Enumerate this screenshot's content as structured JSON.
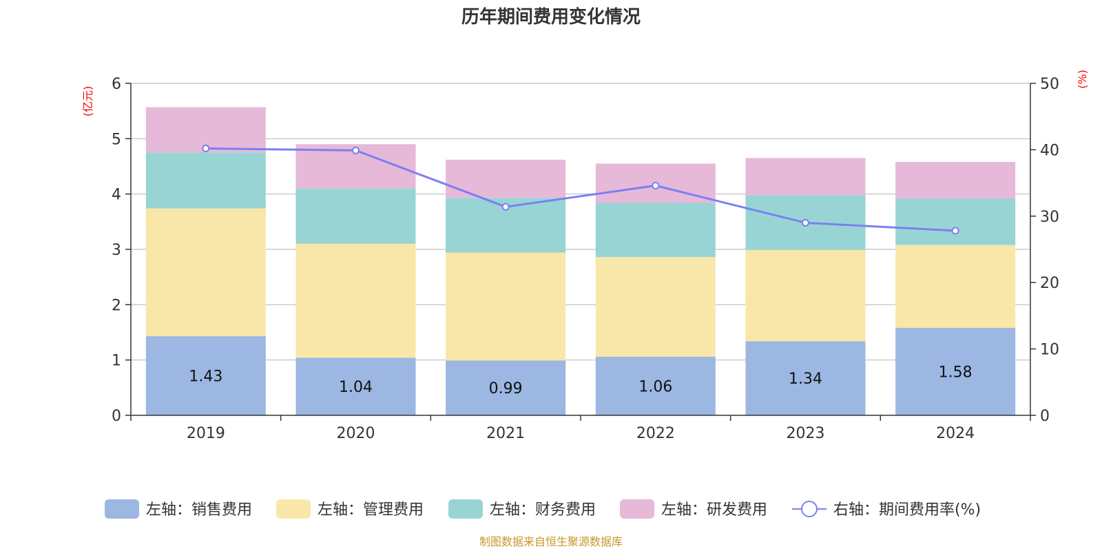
{
  "chart_data": {
    "type": "bar",
    "stacked": true,
    "title": "历年期间费用变化情况",
    "left_axis_unit": "(亿元)",
    "right_axis_unit": "(%)",
    "categories": [
      "2019",
      "2020",
      "2021",
      "2022",
      "2023",
      "2024"
    ],
    "left_ylim": [
      0,
      6
    ],
    "left_ticks": [
      0,
      1,
      2,
      3,
      4,
      5,
      6
    ],
    "right_ylim": [
      0,
      50
    ],
    "right_ticks": [
      0,
      10,
      20,
      30,
      40,
      50
    ],
    "grid": true,
    "legend_position": "bottom",
    "series": [
      {
        "name": "左轴：销售费用",
        "axis": "left",
        "color": "#9bb7e2",
        "values": [
          1.43,
          1.04,
          0.99,
          1.06,
          1.34,
          1.58
        ],
        "labels": [
          "1.43",
          "1.04",
          "0.99",
          "1.06",
          "1.34",
          "1.58"
        ]
      },
      {
        "name": "左轴：管理费用",
        "axis": "left",
        "color": "#f8e7a8",
        "values": [
          2.31,
          2.06,
          1.95,
          1.8,
          1.65,
          1.5
        ]
      },
      {
        "name": "左轴：财务费用",
        "axis": "left",
        "color": "#98d4d4",
        "values": [
          1.01,
          1.0,
          0.99,
          0.98,
          0.99,
          0.84
        ]
      },
      {
        "name": "左轴：研发费用",
        "axis": "left",
        "color": "#e6b9d9",
        "values": [
          0.82,
          0.8,
          0.69,
          0.71,
          0.67,
          0.66
        ]
      }
    ],
    "line_series": {
      "name": "右轴：期间费用率(%)",
      "axis": "right",
      "type": "line",
      "color": "#7b7ff0",
      "values": [
        40.2,
        39.9,
        31.4,
        34.6,
        29.0,
        27.8
      ]
    }
  },
  "footer": {
    "source": "制图数据来自恒生聚源数据库"
  }
}
